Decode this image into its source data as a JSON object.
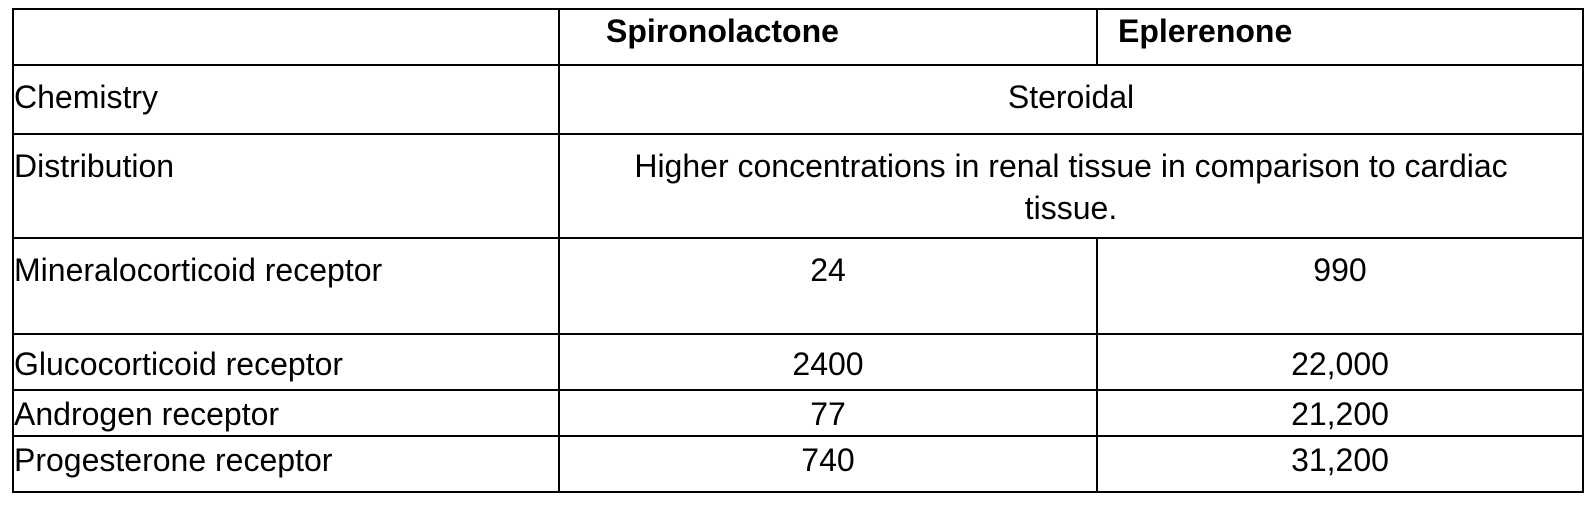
{
  "table": {
    "header": {
      "corner": "",
      "col1": "Spironolactone",
      "col2": "Eplerenone"
    },
    "rows": [
      {
        "label": "Chemistry",
        "shared": "Steroidal"
      },
      {
        "label": "Distribution",
        "shared": "Higher concentrations in renal tissue in comparison to cardiac tissue."
      },
      {
        "label": "Mineralocorticoid receptor",
        "spironolactone": "24",
        "eplerenone": "990"
      },
      {
        "label": "Glucocorticoid receptor",
        "spironolactone": "2400",
        "eplerenone": "22,000"
      },
      {
        "label": "Androgen receptor",
        "spironolactone": "77",
        "eplerenone": "21,200"
      },
      {
        "label": "Progesterone receptor",
        "spironolactone": "740",
        "eplerenone": "31,200"
      }
    ]
  }
}
